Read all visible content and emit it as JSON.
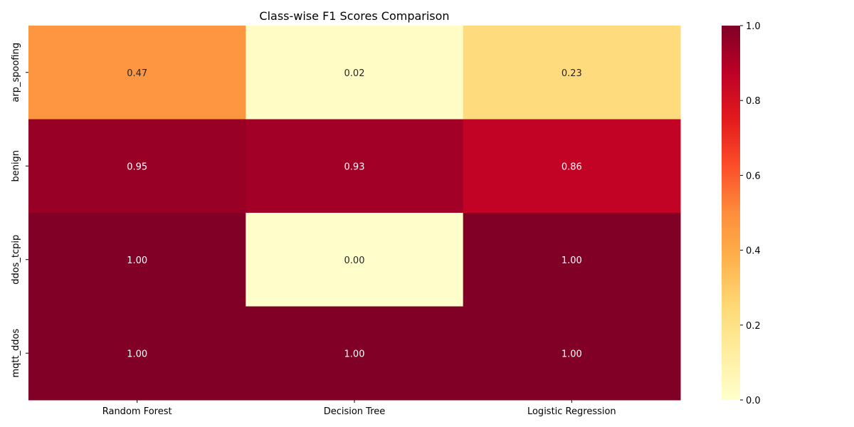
{
  "chart_data": {
    "type": "heatmap",
    "title": "Class-wise F1 Scores Comparison",
    "xlabel": "",
    "ylabel": "",
    "columns": [
      "Random Forest",
      "Decision Tree",
      "Logistic Regression"
    ],
    "rows": [
      "arp_spoofing",
      "benign",
      "ddos_tcpip",
      "mqtt_ddos"
    ],
    "values": [
      [
        0.47,
        0.02,
        0.23
      ],
      [
        0.95,
        0.93,
        0.86
      ],
      [
        1.0,
        0.0,
        1.0
      ],
      [
        1.0,
        1.0,
        1.0
      ]
    ],
    "value_labels": [
      [
        "0.47",
        "0.02",
        "0.23"
      ],
      [
        "0.95",
        "0.93",
        "0.86"
      ],
      [
        "1.00",
        "0.00",
        "1.00"
      ],
      [
        "1.00",
        "1.00",
        "1.00"
      ]
    ],
    "colormap": "YlOrRd",
    "vmin": 0.0,
    "vmax": 1.0,
    "colorbar_ticks": [
      "0.0",
      "0.2",
      "0.4",
      "0.6",
      "0.8",
      "1.0"
    ],
    "colorbar_tick_values": [
      0.0,
      0.2,
      0.4,
      0.6,
      0.8,
      1.0
    ],
    "legend_position": "right"
  }
}
